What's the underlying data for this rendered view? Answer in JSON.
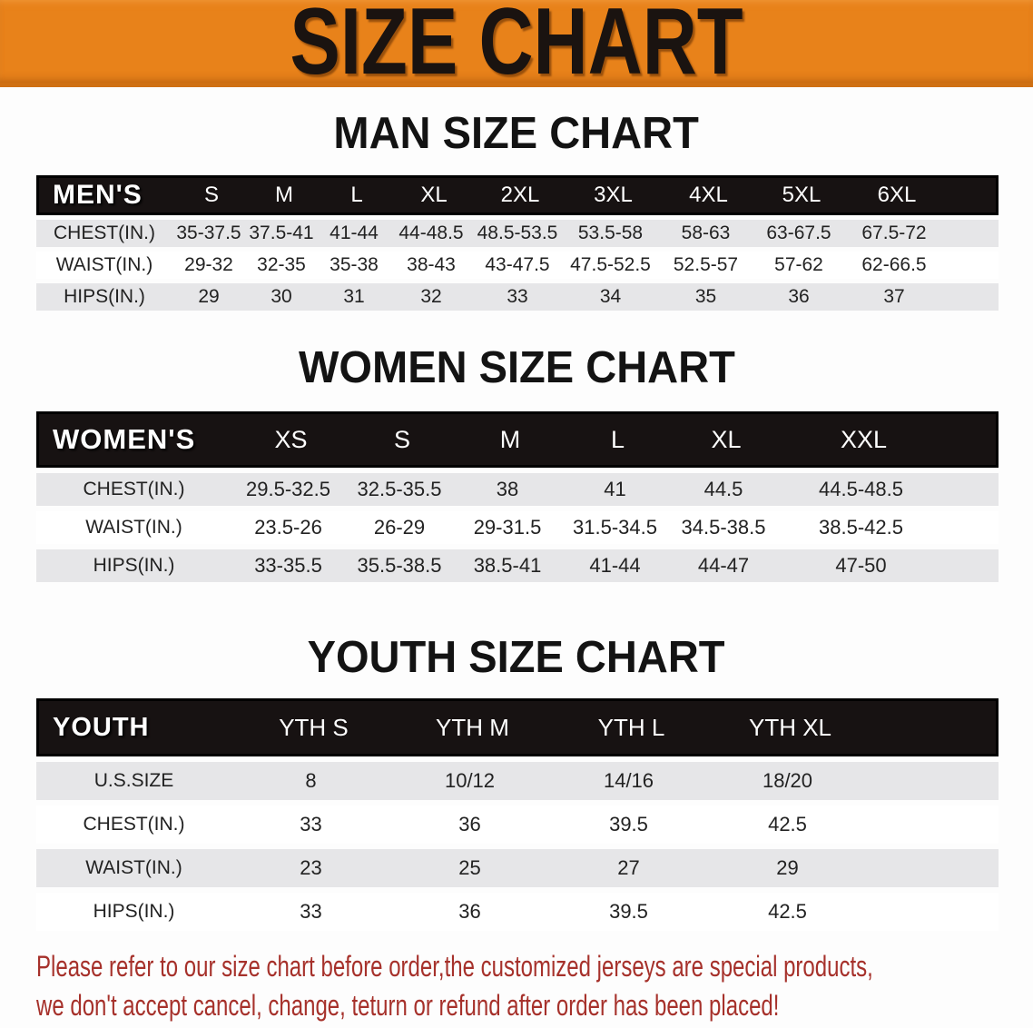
{
  "banner": {
    "title": "SIZE CHART"
  },
  "sections": [
    {
      "title": "MAN SIZE CHART",
      "header_label": "MEN'S",
      "columns": [
        "S",
        "M",
        "L",
        "XL",
        "2XL",
        "3XL",
        "4XL",
        "5XL",
        "6XL"
      ],
      "rows": [
        {
          "label": "CHEST(IN.)",
          "values": [
            "35-37.5",
            "37.5-41",
            "41-44",
            "44-48.5",
            "48.5-53.5",
            "53.5-58",
            "58-63",
            "63-67.5",
            "67.5-72"
          ]
        },
        {
          "label": "WAIST(IN.)",
          "values": [
            "29-32",
            "32-35",
            "35-38",
            "38-43",
            "43-47.5",
            "47.5-52.5",
            "52.5-57",
            "57-62",
            "62-66.5"
          ]
        },
        {
          "label": "HIPS(IN.)",
          "values": [
            "29",
            "30",
            "31",
            "32",
            "33",
            "34",
            "35",
            "36",
            "37"
          ]
        }
      ]
    },
    {
      "title": "WOMEN SIZE CHART",
      "header_label": "WOMEN'S",
      "columns": [
        "XS",
        "S",
        "M",
        "L",
        "XL",
        "XXL"
      ],
      "rows": [
        {
          "label": "CHEST(IN.)",
          "values": [
            "29.5-32.5",
            "32.5-35.5",
            "38",
            "41",
            "44.5",
            "44.5-48.5"
          ]
        },
        {
          "label": "WAIST(IN.)",
          "values": [
            "23.5-26",
            "26-29",
            "29-31.5",
            "31.5-34.5",
            "34.5-38.5",
            "38.5-42.5"
          ]
        },
        {
          "label": "HIPS(IN.)",
          "values": [
            "33-35.5",
            "35.5-38.5",
            "38.5-41",
            "41-44",
            "44-47",
            "47-50"
          ]
        }
      ]
    },
    {
      "title": "YOUTH SIZE CHART",
      "header_label": "YOUTH",
      "columns": [
        "YTH S",
        "YTH M",
        "YTH L",
        "YTH XL"
      ],
      "rows": [
        {
          "label": "U.S.SIZE",
          "values": [
            "8",
            "10/12",
            "14/16",
            "18/20"
          ]
        },
        {
          "label": "CHEST(IN.)",
          "values": [
            "33",
            "36",
            "39.5",
            "42.5"
          ]
        },
        {
          "label": "WAIST(IN.)",
          "values": [
            "23",
            "25",
            "27",
            "29"
          ]
        },
        {
          "label": "HIPS(IN.)",
          "values": [
            "33",
            "36",
            "39.5",
            "42.5"
          ]
        }
      ]
    }
  ],
  "disclaimer": {
    "line1": "Please refer to our size chart before order,the customized jerseys are special products,",
    "line2": "we don't accept cancel, change, teturn or refund after order has been placed!"
  },
  "colors": {
    "banner_bg": "#e8821a",
    "banner_text": "#1a1310",
    "header_bar_bg": "#171212",
    "row_shade": "#e6e6e8",
    "disclaimer_red": "#a6312b"
  }
}
